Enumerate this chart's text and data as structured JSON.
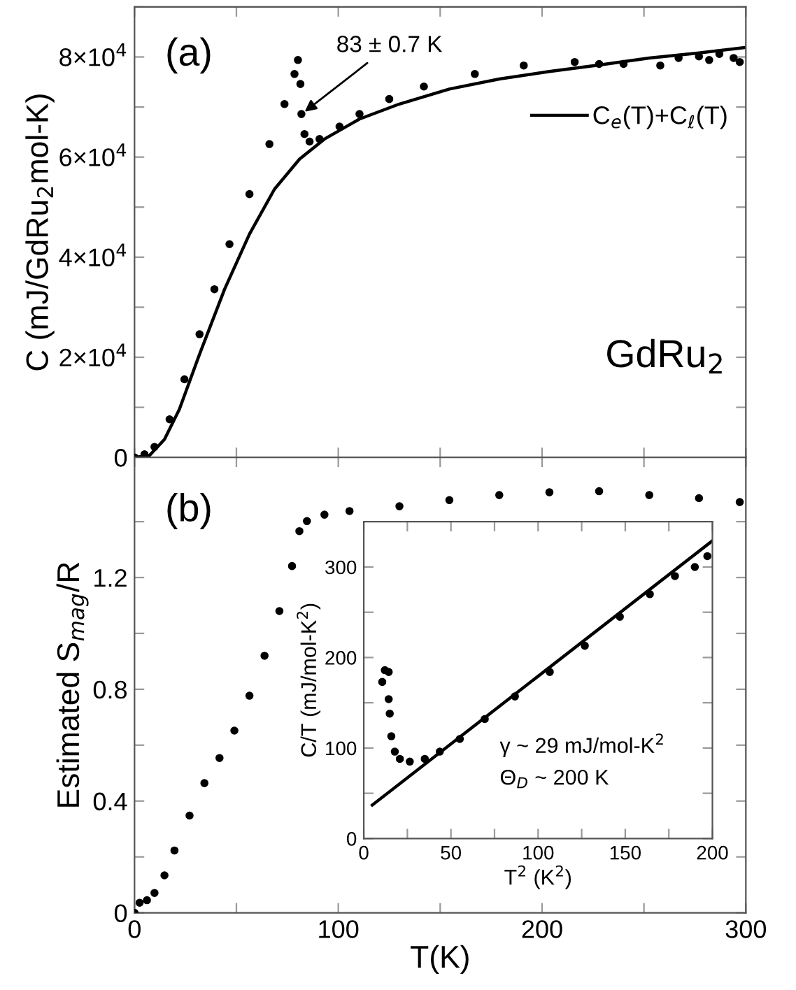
{
  "chart_data": [
    {
      "type": "scatter",
      "ylabel": "C (mJ/GdRu$_{2}$mol-K)",
      "xlim": [
        0,
        300
      ],
      "ylim": [
        0,
        90000
      ],
      "tick_labels": "y",
      "legend": "top right",
      "grid": false,
      "xticks": [
        0,
        {
          "value": 50,
          "label": null
        },
        100,
        {
          "value": 150,
          "label": null
        },
        200,
        {
          "value": 250,
          "label": null
        },
        300
      ],
      "yticks": [
        0,
        {
          "value": 10000,
          "label": null
        },
        {
          "value": 20000,
          "label": "2×10$^{4}$"
        },
        {
          "value": 30000,
          "label": null
        },
        {
          "value": 40000,
          "label": "4×10$^{4}$"
        },
        {
          "value": 50000,
          "label": null
        },
        {
          "value": 60000,
          "label": "6×10$^{4}$"
        },
        {
          "value": 70000,
          "label": null
        },
        {
          "value": 80000,
          "label": "8×10$^{4}$"
        },
        {
          "value": 90000,
          "label": null
        }
      ],
      "annotations": [
        "(a)",
        {
          "text": "83 ± 0.7 K",
          "x": 82,
          "y": 68600
        },
        "GdRu$_{2}$"
      ],
      "series": [
        {
          "marker": "circle",
          "color": "#000000",
          "x": [
            0,
            4.9,
            9.8,
            17.2,
            24.5,
            31.9,
            39.2,
            46.6,
            56.4,
            66.2,
            73.6,
            78.5,
            80.2,
            81.4,
            81.9,
            83.4,
            85.9,
            90.8,
            100.6,
            110.4,
            125,
            142,
            167,
            191,
            216,
            228,
            240,
            258,
            267,
            277,
            282,
            287,
            294,
            297
          ],
          "values": [
            0,
            600,
            2100,
            7600,
            15600,
            24600,
            33600,
            42600,
            52600,
            62600,
            70600,
            76600,
            79400,
            74600,
            68600,
            64600,
            63100,
            63600,
            66100,
            68600,
            71600,
            74100,
            76600,
            78300,
            79000,
            78600,
            78600,
            78300,
            79800,
            80100,
            79400,
            80600,
            79800,
            79000
          ]
        },
        {
          "type": "line",
          "name": "C$_{e}$(T)+C$_{ℓ}$(T)",
          "marker": "none",
          "line_style": "solid",
          "color": "#000000",
          "x": [
            0,
            7.4,
            14.7,
            22,
            31.9,
            44.2,
            56.4,
            68.7,
            81,
            93.2,
            110.4,
            130,
            154.5,
            179,
            203.6,
            228,
            252.6,
            277,
            300
          ],
          "values": [
            0,
            400,
            3600,
            9600,
            20600,
            33600,
            44600,
            53600,
            59600,
            63600,
            67600,
            70600,
            73600,
            75600,
            77100,
            78400,
            79800,
            80800,
            81900
          ]
        }
      ]
    },
    {
      "type": "scatter",
      "ylabel": "Estimated S$_{mag}$/R",
      "xlabel": "T(K)",
      "xlim": [
        0,
        300
      ],
      "ylim": [
        0,
        1.63
      ],
      "grid": false,
      "xticks": [
        0,
        {
          "value": 50,
          "label": null
        },
        100,
        {
          "value": 150,
          "label": null
        },
        200,
        {
          "value": 250,
          "label": null
        },
        300
      ],
      "yticks": [
        0,
        {
          "value": 0.2,
          "label": null
        },
        0.4,
        {
          "value": 0.6,
          "label": null
        },
        0.8,
        {
          "value": 1.0,
          "label": null
        },
        1.2,
        {
          "value": 1.4,
          "label": null
        }
      ],
      "annotations": [
        "(b)"
      ],
      "series": [
        {
          "marker": "circle",
          "color": "#000000",
          "x": [
            0,
            2.5,
            6.1,
            9.8,
            14.7,
            19.6,
            27,
            34.3,
            41.7,
            49,
            56.4,
            63.8,
            71.1,
            77.3,
            80.9,
            84.6,
            93.2,
            105.5,
            130,
            154.5,
            179,
            203.6,
            228,
            252.6,
            277,
            297
          ],
          "values": [
            0,
            0.036,
            0.045,
            0.071,
            0.134,
            0.223,
            0.348,
            0.464,
            0.554,
            0.652,
            0.777,
            0.92,
            1.08,
            1.241,
            1.366,
            1.402,
            1.425,
            1.438,
            1.455,
            1.477,
            1.495,
            1.505,
            1.509,
            1.495,
            1.484,
            1.47
          ]
        }
      ]
    },
    {
      "type": "scatter",
      "xlabel": "T$^{2}$ (K$^{2}$)",
      "ylabel": "C/T (mJ/mol-K$^{2}$)",
      "xlim": [
        0,
        200
      ],
      "ylim": [
        0,
        350
      ],
      "grid": false,
      "xticks": [
        0,
        {
          "value": 25,
          "label": null
        },
        50,
        {
          "value": 75,
          "label": null
        },
        100,
        {
          "value": 125,
          "label": null
        },
        150,
        {
          "value": 175,
          "label": null
        },
        200
      ],
      "yticks": [
        0,
        {
          "value": 50,
          "label": null
        },
        100,
        {
          "value": 150,
          "label": null
        },
        200,
        {
          "value": 250,
          "label": null
        },
        300
      ],
      "annotations": [
        "γ ~ 29 mJ/mol-K$^{2}$",
        "Θ$_{D}$ ~ 200 K"
      ],
      "series": [
        {
          "marker": "circle",
          "color": "#000000",
          "x": [
            10.6,
            12.1,
            14.3,
            14.3,
            14.9,
            15.8,
            17.8,
            20.7,
            26.4,
            35,
            43.6,
            55.1,
            69.4,
            86.7,
            106.7,
            126.8,
            146.9,
            164.1,
            178.5,
            189.9,
            197.1
          ],
          "values": [
            173,
            186,
            184,
            154,
            138,
            113,
            96,
            88,
            85,
            88,
            96,
            110,
            132,
            157,
            184,
            213,
            245,
            270,
            290,
            300,
            312
          ]
        },
        {
          "type": "line",
          "marker": "none",
          "line_style": "solid",
          "color": "#000000",
          "x": [
            4.9,
            200
          ],
          "values": [
            37,
            329
          ]
        }
      ]
    }
  ]
}
